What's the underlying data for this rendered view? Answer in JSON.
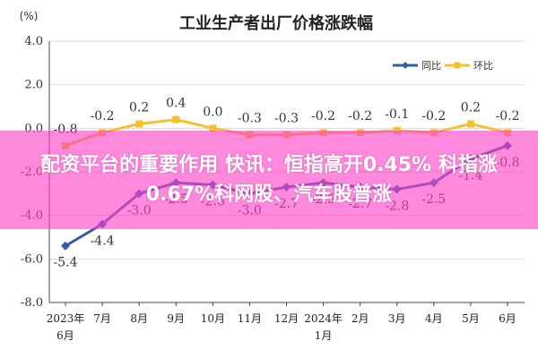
{
  "chart_data": {
    "type": "line",
    "title": "工业生产者出厂价格涨跌幅",
    "ylabel": "(%)",
    "ylim": [
      -8.0,
      4.0
    ],
    "yticks": [
      "4.0",
      "2.0",
      "0.0",
      "-2.0",
      "-4.0",
      "-6.0",
      "-8.0"
    ],
    "categories": [
      [
        "2023年",
        "6月"
      ],
      [
        "7月"
      ],
      [
        "8月"
      ],
      [
        "9月"
      ],
      [
        "10月"
      ],
      [
        "11月"
      ],
      [
        "12月"
      ],
      [
        "2024年",
        "1月"
      ],
      [
        "2月"
      ],
      [
        "3月"
      ],
      [
        "4月"
      ],
      [
        "5月"
      ],
      [
        "6月"
      ]
    ],
    "series": [
      {
        "name": "同比",
        "color": "#2f5dab",
        "values": [
          -5.4,
          -4.4,
          -3.0,
          -2.5,
          -2.6,
          -3.0,
          -2.7,
          -2.5,
          -2.7,
          -2.8,
          -2.5,
          -1.4,
          -0.8
        ],
        "labels": [
          "-5.4",
          "-4.4",
          "-3.0",
          "-2.5",
          "-2.6",
          "-3.0",
          "-2.7",
          "-2.5",
          "-2.7",
          "-2.8",
          "-2.5",
          "-1.4",
          "-0.8"
        ]
      },
      {
        "name": "环比",
        "color": "#f2c12e",
        "values": [
          -0.8,
          -0.2,
          0.2,
          0.4,
          0.0,
          -0.3,
          -0.3,
          -0.2,
          -0.2,
          -0.1,
          -0.2,
          0.2,
          -0.2
        ],
        "labels": [
          "-0.8",
          "-0.2",
          "0.2",
          "0.4",
          "0.0",
          "-0.3",
          "-0.3",
          "-0.2",
          "-0.2",
          "-0.1",
          "-0.2",
          "0.2",
          "-0.2"
        ]
      }
    ],
    "grid": "horizontal",
    "legend_position": "top-right"
  },
  "overlay": {
    "color": "#ff40c8",
    "headline": "配资平台的重要作用 快讯：恒指高开0.45% 科指涨0.67%科网股、汽车股普涨"
  }
}
